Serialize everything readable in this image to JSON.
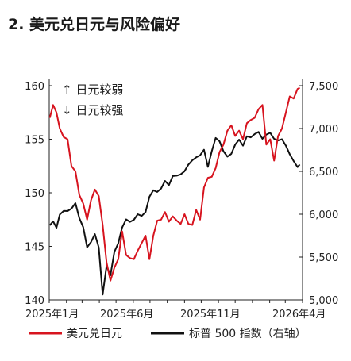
{
  "chart_data": {
    "type": "line",
    "title": "2. 美元兑日元与风险偏好",
    "x_ticks": [
      "2025年1月",
      "2025年6月",
      "2025年11月",
      "2026年4月"
    ],
    "x_range": [
      "2025-01-01",
      "2026-04-01"
    ],
    "left_axis": {
      "ylim": [
        140,
        160
      ],
      "ticks": [
        "140",
        "145",
        "150",
        "155",
        "160"
      ]
    },
    "right_axis": {
      "ylim": [
        5000,
        7500
      ],
      "ticks": [
        "5,000",
        "5,500",
        "6,000",
        "6,500",
        "7,000",
        "7,500"
      ]
    },
    "annotations": [
      "↑ 日元较弱",
      "↓ 日元较强"
    ],
    "series": [
      {
        "name": "美元兑日元",
        "axis": "left",
        "color": "#d7141f",
        "points": [
          [
            "2025-01-02",
            157.0
          ],
          [
            "2025-01-08",
            158.2
          ],
          [
            "2025-01-14",
            157.5
          ],
          [
            "2025-01-20",
            156.0
          ],
          [
            "2025-01-27",
            155.2
          ],
          [
            "2025-02-03",
            155.0
          ],
          [
            "2025-02-10",
            152.5
          ],
          [
            "2025-02-17",
            152.0
          ],
          [
            "2025-02-24",
            149.8
          ],
          [
            "2025-03-03",
            149.0
          ],
          [
            "2025-03-10",
            147.5
          ],
          [
            "2025-03-17",
            149.3
          ],
          [
            "2025-03-24",
            150.3
          ],
          [
            "2025-03-31",
            149.7
          ],
          [
            "2025-04-07",
            147.0
          ],
          [
            "2025-04-14",
            143.5
          ],
          [
            "2025-04-21",
            141.8
          ],
          [
            "2025-04-28",
            143.0
          ],
          [
            "2025-05-05",
            143.8
          ],
          [
            "2025-05-12",
            146.4
          ],
          [
            "2025-05-19",
            144.2
          ],
          [
            "2025-05-26",
            143.9
          ],
          [
            "2025-06-02",
            143.8
          ],
          [
            "2025-06-09",
            144.6
          ],
          [
            "2025-06-16",
            145.3
          ],
          [
            "2025-06-23",
            146.0
          ],
          [
            "2025-06-30",
            143.8
          ],
          [
            "2025-07-07",
            146.0
          ],
          [
            "2025-07-14",
            147.4
          ],
          [
            "2025-07-21",
            147.5
          ],
          [
            "2025-07-28",
            148.2
          ],
          [
            "2025-08-04",
            147.3
          ],
          [
            "2025-08-11",
            147.8
          ],
          [
            "2025-08-18",
            147.4
          ],
          [
            "2025-08-25",
            147.1
          ],
          [
            "2025-09-01",
            148.0
          ],
          [
            "2025-09-08",
            147.1
          ],
          [
            "2025-09-15",
            147.0
          ],
          [
            "2025-09-22",
            148.4
          ],
          [
            "2025-09-29",
            147.5
          ],
          [
            "2025-10-06",
            150.5
          ],
          [
            "2025-10-13",
            151.4
          ],
          [
            "2025-10-20",
            151.5
          ],
          [
            "2025-10-27",
            152.3
          ],
          [
            "2025-11-03",
            153.8
          ],
          [
            "2025-11-10",
            154.5
          ],
          [
            "2025-11-17",
            155.8
          ],
          [
            "2025-11-24",
            156.3
          ],
          [
            "2025-12-01",
            155.3
          ],
          [
            "2025-12-08",
            155.8
          ],
          [
            "2025-12-15",
            155.0
          ],
          [
            "2025-12-22",
            156.5
          ],
          [
            "2025-12-29",
            156.8
          ],
          [
            "2026-01-05",
            157.0
          ],
          [
            "2026-01-12",
            157.8
          ],
          [
            "2026-01-19",
            158.2
          ],
          [
            "2026-01-26",
            154.5
          ],
          [
            "2026-02-02",
            155.0
          ],
          [
            "2026-02-09",
            153.0
          ],
          [
            "2026-02-16",
            155.3
          ],
          [
            "2026-02-23",
            156.0
          ],
          [
            "2026-03-02",
            157.5
          ],
          [
            "2026-03-09",
            159.0
          ],
          [
            "2026-03-16",
            158.8
          ],
          [
            "2026-03-23",
            159.7
          ],
          [
            "2026-03-27",
            159.8
          ]
        ]
      },
      {
        "name": "标普 500 指数（右轴）",
        "axis": "right",
        "color": "#111111",
        "points": [
          [
            "2025-01-02",
            5870
          ],
          [
            "2025-01-08",
            5918
          ],
          [
            "2025-01-14",
            5842
          ],
          [
            "2025-01-20",
            5996
          ],
          [
            "2025-01-27",
            6039
          ],
          [
            "2025-02-03",
            6037
          ],
          [
            "2025-02-10",
            6066
          ],
          [
            "2025-02-17",
            6130
          ],
          [
            "2025-02-24",
            5955
          ],
          [
            "2025-03-03",
            5849
          ],
          [
            "2025-03-10",
            5615
          ],
          [
            "2025-03-17",
            5675
          ],
          [
            "2025-03-24",
            5768
          ],
          [
            "2025-03-31",
            5612
          ],
          [
            "2025-04-07",
            5062
          ],
          [
            "2025-04-14",
            5396
          ],
          [
            "2025-04-21",
            5287
          ],
          [
            "2025-04-28",
            5560
          ],
          [
            "2025-05-05",
            5660
          ],
          [
            "2025-05-12",
            5844
          ],
          [
            "2025-05-19",
            5940
          ],
          [
            "2025-05-26",
            5911
          ],
          [
            "2025-06-02",
            5935
          ],
          [
            "2025-06-09",
            6000
          ],
          [
            "2025-06-16",
            5980
          ],
          [
            "2025-06-23",
            6025
          ],
          [
            "2025-06-30",
            6204
          ],
          [
            "2025-07-07",
            6280
          ],
          [
            "2025-07-14",
            6260
          ],
          [
            "2025-07-21",
            6300
          ],
          [
            "2025-07-28",
            6389
          ],
          [
            "2025-08-04",
            6340
          ],
          [
            "2025-08-11",
            6445
          ],
          [
            "2025-08-18",
            6450
          ],
          [
            "2025-08-25",
            6465
          ],
          [
            "2025-09-01",
            6502
          ],
          [
            "2025-09-08",
            6580
          ],
          [
            "2025-09-15",
            6630
          ],
          [
            "2025-09-22",
            6664
          ],
          [
            "2025-09-29",
            6688
          ],
          [
            "2025-10-06",
            6753
          ],
          [
            "2025-10-13",
            6552
          ],
          [
            "2025-10-20",
            6735
          ],
          [
            "2025-10-27",
            6890
          ],
          [
            "2025-11-03",
            6851
          ],
          [
            "2025-11-10",
            6735
          ],
          [
            "2025-11-17",
            6672
          ],
          [
            "2025-11-24",
            6705
          ],
          [
            "2025-12-01",
            6812
          ],
          [
            "2025-12-08",
            6870
          ],
          [
            "2025-12-15",
            6800
          ],
          [
            "2025-12-22",
            6909
          ],
          [
            "2025-12-29",
            6897
          ],
          [
            "2026-01-05",
            6935
          ],
          [
            "2026-01-12",
            6960
          ],
          [
            "2026-01-19",
            6880
          ],
          [
            "2026-01-26",
            6930
          ],
          [
            "2026-02-02",
            6950
          ],
          [
            "2026-02-09",
            6880
          ],
          [
            "2026-02-16",
            6860
          ],
          [
            "2026-02-23",
            6875
          ],
          [
            "2026-03-02",
            6800
          ],
          [
            "2026-03-09",
            6700
          ],
          [
            "2026-03-16",
            6620
          ],
          [
            "2026-03-23",
            6550
          ],
          [
            "2026-03-27",
            6580
          ]
        ]
      }
    ]
  }
}
